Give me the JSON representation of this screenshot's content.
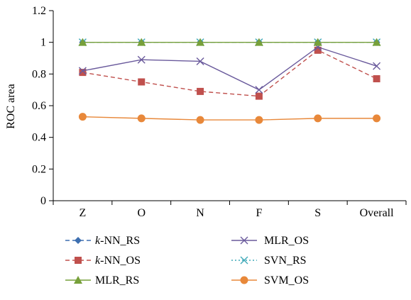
{
  "chart_data": {
    "type": "line",
    "categories": [
      "Z",
      "O",
      "N",
      "F",
      "S",
      "Overall"
    ],
    "ylabel": "ROC area",
    "ylim": [
      0,
      1.2
    ],
    "yticks": [
      "0",
      "0.2",
      "0.4",
      "0.6",
      "0.8",
      "1",
      "1.2"
    ],
    "grid": false,
    "legend_position": "bottom",
    "series": [
      {
        "name": "k-NN_RS",
        "name_italic": "k",
        "name_rest": "-NN_RS",
        "values": [
          1.0,
          1.0,
          1.0,
          1.0,
          1.0,
          1.0
        ],
        "color": "#3d6fb0",
        "dash": "6,4",
        "marker": "diamond"
      },
      {
        "name": "k-NN_OS",
        "name_italic": "k",
        "name_rest": "-NN_OS",
        "values": [
          0.81,
          0.75,
          0.69,
          0.66,
          0.95,
          0.77
        ],
        "color": "#c0504d",
        "dash": "6,4",
        "marker": "square"
      },
      {
        "name": "MLR_RS",
        "name_italic": "",
        "name_rest": "MLR_RS",
        "values": [
          1.0,
          1.0,
          1.0,
          1.0,
          1.0,
          1.0
        ],
        "color": "#77a03a",
        "dash": "",
        "marker": "triangle"
      },
      {
        "name": "MLR_OS",
        "name_italic": "",
        "name_rest": "MLR_OS",
        "values": [
          0.82,
          0.89,
          0.88,
          0.7,
          0.97,
          0.85
        ],
        "color": "#6a5a9c",
        "dash": "",
        "marker": "x"
      },
      {
        "name": "SVN_RS",
        "name_italic": "",
        "name_rest": "SVN_RS",
        "values": [
          1.0,
          1.0,
          1.0,
          1.0,
          1.0,
          1.0
        ],
        "color": "#3fa9b8",
        "dash": "2,3",
        "marker": "x"
      },
      {
        "name": "SVM_OS",
        "name_italic": "",
        "name_rest": "SVM_OS",
        "values": [
          0.53,
          0.52,
          0.51,
          0.51,
          0.52,
          0.52
        ],
        "color": "#e8883a",
        "dash": "",
        "marker": "circle"
      }
    ]
  }
}
